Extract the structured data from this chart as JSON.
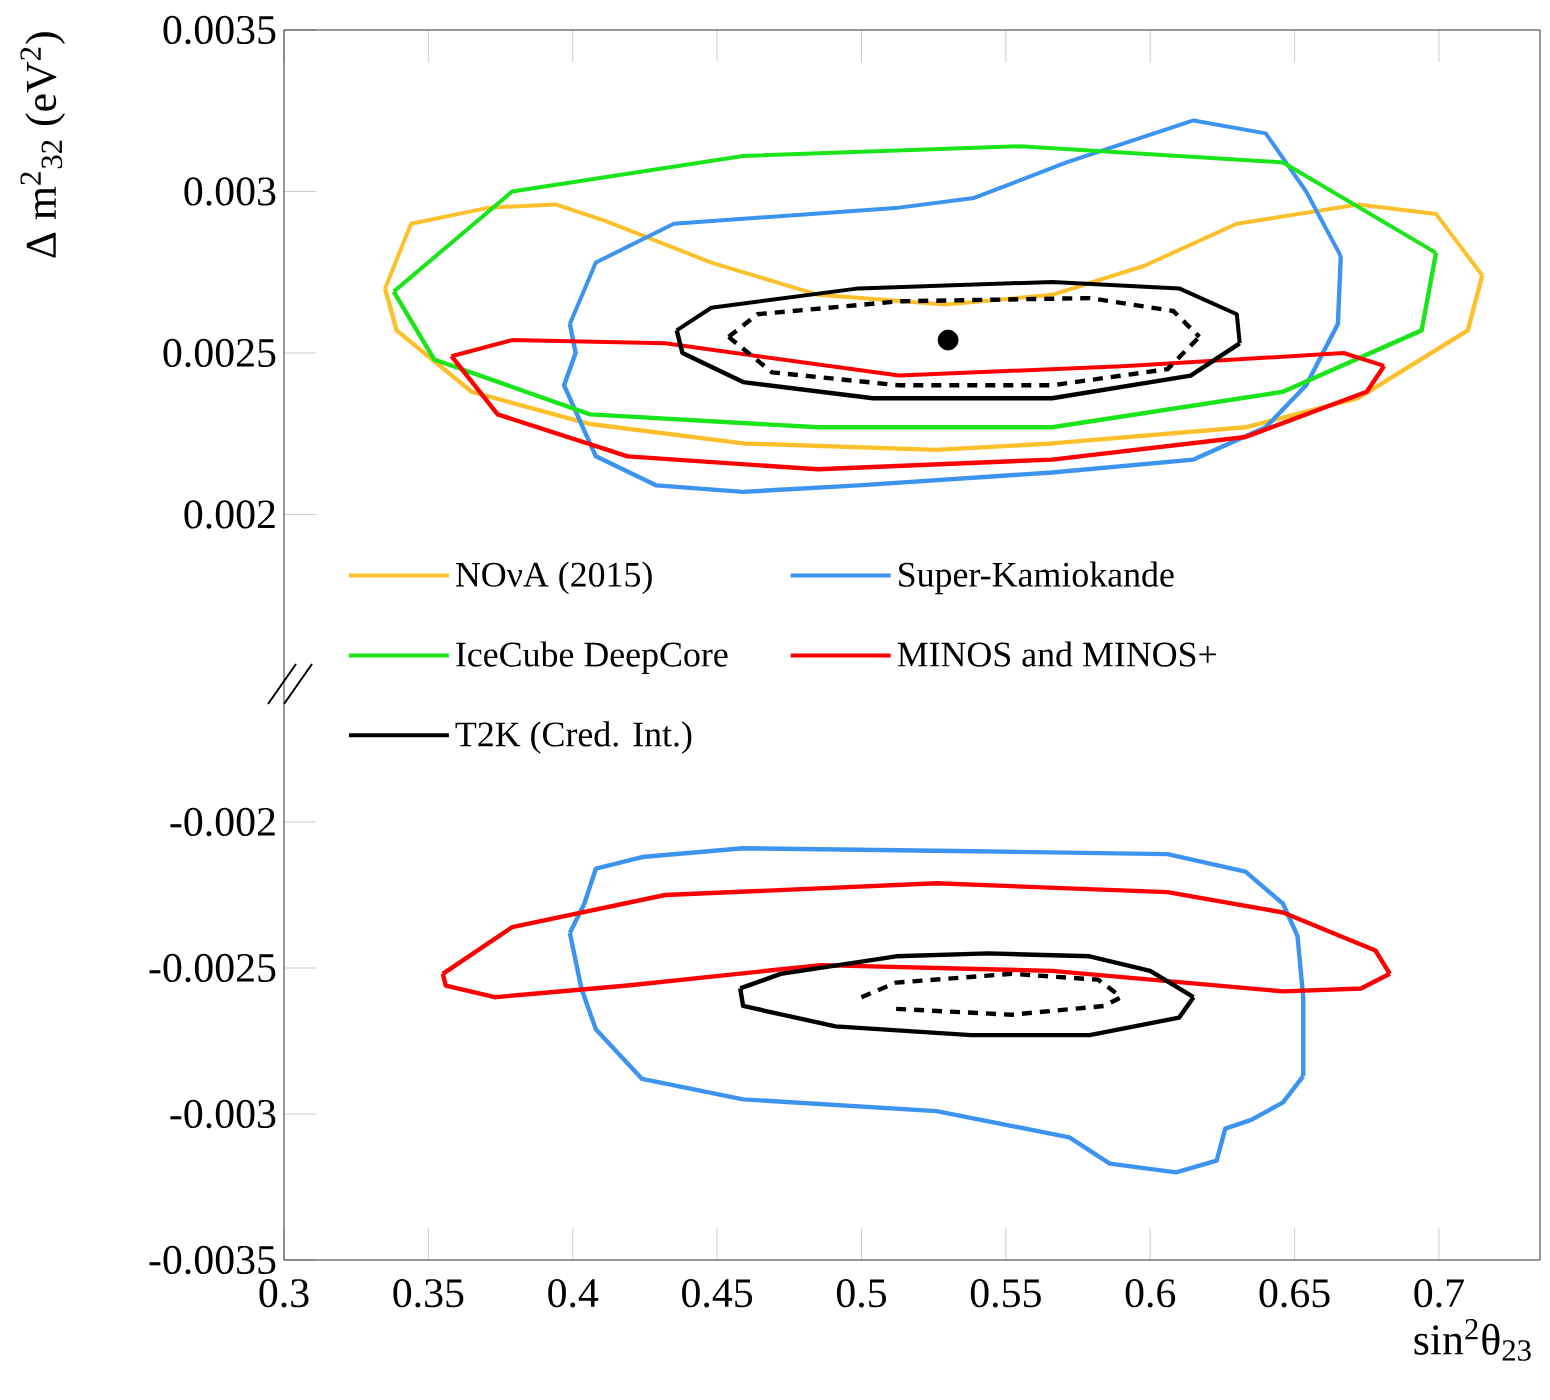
{
  "chart_data": [
    {
      "type": "line",
      "ylabel": "Δ m$^{2}$$_{32}$ (eV$^{2}$)",
      "xlim": [
        0.3,
        0.735
      ],
      "ylim": [
        0.0015,
        0.0035
      ],
      "xticks": [
        0.3,
        0.35,
        0.4,
        0.45,
        0.5,
        0.55,
        0.6,
        0.65,
        0.7
      ],
      "yticks": [
        0.002,
        0.0025,
        0.003,
        0.0035
      ],
      "tick_labels": "y",
      "legend": "bottom left",
      "series": [
        {
          "name": "NOνA (2015)",
          "color": "#fcc02c",
          "x": [
            0.335,
            0.344,
            0.371,
            0.394,
            0.411,
            0.448,
            0.485,
            0.529,
            0.566,
            0.598,
            0.63,
            0.672,
            0.699,
            0.715
          ],
          "values": [
            0.0027,
            0.0029,
            0.00295,
            0.00296,
            0.00291,
            0.00278,
            0.00268,
            0.00265,
            0.00268,
            0.00277,
            0.0029,
            0.00296,
            0.00293,
            0.00274
          ]
        },
        {
          "color": "#fcc02c",
          "x": [
            0.335,
            0.339,
            0.365,
            0.406,
            0.459,
            0.526,
            0.566,
            0.633,
            0.672,
            0.71,
            0.715
          ],
          "values": [
            0.0027,
            0.00257,
            0.00238,
            0.00228,
            0.00222,
            0.0022,
            0.00222,
            0.00227,
            0.00236,
            0.00257,
            0.00274
          ]
        },
        {
          "name": "Super-Kamiokande",
          "color": "#3d94f0",
          "x": [
            0.399,
            0.408,
            0.435,
            0.513,
            0.539,
            0.571,
            0.615,
            0.64,
            0.654,
            0.666
          ],
          "values": [
            0.00259,
            0.00278,
            0.0029,
            0.00295,
            0.00298,
            0.00309,
            0.00322,
            0.00318,
            0.003,
            0.0028
          ]
        },
        {
          "color": "#3d94f0",
          "x": [
            0.399,
            0.401,
            0.397,
            0.408,
            0.429,
            0.459,
            0.499,
            0.566,
            0.615,
            0.64,
            0.654,
            0.665,
            0.666
          ],
          "values": [
            0.00259,
            0.0025,
            0.0024,
            0.00218,
            0.00209,
            0.00207,
            0.00209,
            0.00213,
            0.00217,
            0.00227,
            0.0024,
            0.00259,
            0.0028
          ]
        },
        {
          "name": "IceCube DeepCore",
          "color": "#1ae51a",
          "x": [
            0.338,
            0.379,
            0.459,
            0.555,
            0.646,
            0.699
          ],
          "values": [
            0.00269,
            0.003,
            0.00311,
            0.00314,
            0.00309,
            0.00281
          ]
        },
        {
          "color": "#1ae51a",
          "x": [
            0.338,
            0.352,
            0.406,
            0.485,
            0.566,
            0.646,
            0.694,
            0.699
          ],
          "values": [
            0.00269,
            0.00248,
            0.00231,
            0.00227,
            0.00227,
            0.00238,
            0.00257,
            0.00281
          ]
        },
        {
          "name": "MINOS and MINOS+",
          "color": "#ff0000",
          "x": [
            0.358,
            0.379,
            0.432,
            0.513,
            0.592,
            0.667,
            0.681
          ],
          "values": [
            0.00249,
            0.00254,
            0.00253,
            0.00243,
            0.00246,
            0.0025,
            0.00246
          ]
        },
        {
          "color": "#ff0000",
          "x": [
            0.358,
            0.374,
            0.419,
            0.485,
            0.566,
            0.633,
            0.675,
            0.681
          ],
          "values": [
            0.00249,
            0.00231,
            0.00218,
            0.00214,
            0.00217,
            0.00224,
            0.00238,
            0.00246
          ]
        },
        {
          "name": "T2K (Cred. Int.)",
          "color": "#000000",
          "x": [
            0.436,
            0.448,
            0.499,
            0.566,
            0.61,
            0.63,
            0.631
          ],
          "values": [
            0.00257,
            0.00264,
            0.0027,
            0.00272,
            0.0027,
            0.00262,
            0.00253
          ]
        },
        {
          "color": "#000000",
          "x": [
            0.436,
            0.438,
            0.459,
            0.504,
            0.566,
            0.614,
            0.631
          ],
          "values": [
            0.00257,
            0.0025,
            0.00241,
            0.00236,
            0.00236,
            0.00243,
            0.00253
          ]
        },
        {
          "color": "#000000",
          "line_style": "dashed",
          "x": [
            0.454,
            0.464,
            0.513,
            0.579,
            0.608,
            0.617
          ],
          "values": [
            0.00255,
            0.00262,
            0.00266,
            0.00267,
            0.00263,
            0.00255
          ]
        },
        {
          "color": "#000000",
          "line_style": "dashed",
          "x": [
            0.454,
            0.469,
            0.513,
            0.566,
            0.606,
            0.617
          ],
          "values": [
            0.00255,
            0.00244,
            0.0024,
            0.0024,
            0.00245,
            0.00255
          ]
        },
        {
          "type": "scatter",
          "color": "#000000",
          "x": [
            0.53
          ],
          "values": [
            0.00254
          ]
        }
      ]
    },
    {
      "type": "line",
      "xlabel": "sin$^{2}$θ$_{23}$",
      "xlim": [
        0.3,
        0.735
      ],
      "ylim": [
        -0.0035,
        -0.0015
      ],
      "xticks": [
        0.3,
        0.35,
        0.4,
        0.45,
        0.5,
        0.55,
        0.6,
        0.65,
        0.7
      ],
      "yticks": [
        -0.0035,
        -0.003,
        -0.0025,
        -0.002
      ],
      "series": [
        {
          "color": "#3d94f0",
          "x": [
            0.399,
            0.404,
            0.408,
            0.424,
            0.459,
            0.539,
            0.606,
            0.633,
            0.646,
            0.651,
            0.653,
            0.653
          ],
          "values": [
            -0.00238,
            -0.00228,
            -0.00216,
            -0.00212,
            -0.00209,
            -0.0021,
            -0.00211,
            -0.00217,
            -0.00228,
            -0.00239,
            -0.0026,
            -0.00287
          ]
        },
        {
          "color": "#3d94f0",
          "x": [
            0.399,
            0.403,
            0.408,
            0.424,
            0.459,
            0.526,
            0.572,
            0.586,
            0.609,
            0.623,
            0.626,
            0.635,
            0.646,
            0.653
          ],
          "values": [
            -0.00238,
            -0.00257,
            -0.00271,
            -0.00288,
            -0.00295,
            -0.00299,
            -0.00308,
            -0.00317,
            -0.0032,
            -0.00316,
            -0.00305,
            -0.00302,
            -0.00296,
            -0.00287
          ]
        },
        {
          "color": "#ff0000",
          "x": [
            0.355,
            0.379,
            0.432,
            0.526,
            0.606,
            0.646,
            0.678,
            0.683
          ],
          "values": [
            -0.00252,
            -0.00236,
            -0.00225,
            -0.00221,
            -0.00224,
            -0.00231,
            -0.00244,
            -0.00252
          ]
        },
        {
          "color": "#ff0000",
          "x": [
            0.355,
            0.356,
            0.373,
            0.419,
            0.486,
            0.566,
            0.646,
            0.673,
            0.683
          ],
          "values": [
            -0.00252,
            -0.00256,
            -0.0026,
            -0.00256,
            -0.00249,
            -0.00251,
            -0.00258,
            -0.00257,
            -0.00252
          ]
        },
        {
          "color": "#000000",
          "x": [
            0.458,
            0.472,
            0.512,
            0.544,
            0.579,
            0.6,
            0.615
          ],
          "values": [
            -0.00257,
            -0.00252,
            -0.00246,
            -0.00245,
            -0.00246,
            -0.00251,
            -0.0026
          ]
        },
        {
          "color": "#000000",
          "x": [
            0.458,
            0.459,
            0.491,
            0.538,
            0.579,
            0.61,
            0.615
          ],
          "values": [
            -0.00257,
            -0.00263,
            -0.0027,
            -0.00273,
            -0.00273,
            -0.00267,
            -0.0026
          ]
        },
        {
          "color": "#000000",
          "line_style": "dashed",
          "x": [
            0.5,
            0.512,
            0.552,
            0.582,
            0.59
          ],
          "values": [
            -0.0026,
            -0.00255,
            -0.00252,
            -0.00254,
            -0.0026
          ]
        },
        {
          "color": "#000000",
          "line_style": "dashed",
          "x": [
            0.512,
            0.552,
            0.584,
            0.59
          ],
          "values": [
            -0.00264,
            -0.00266,
            -0.00263,
            -0.0026
          ]
        }
      ]
    }
  ]
}
